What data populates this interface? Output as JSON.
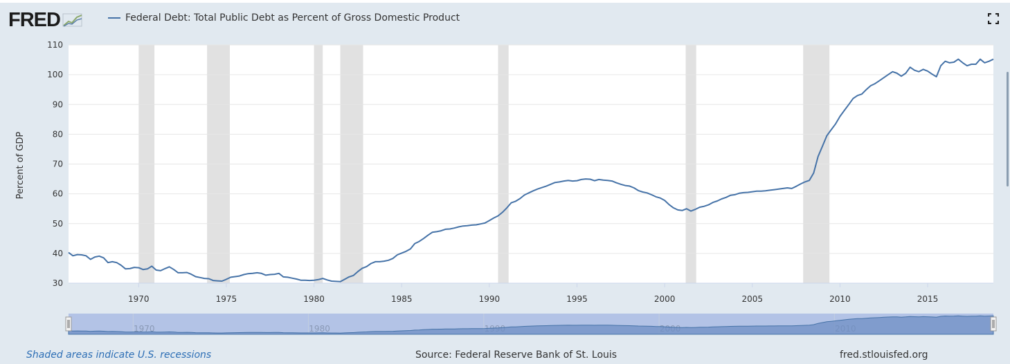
{
  "header": {
    "logo_text": "FRED",
    "logo_icon": "chart-line-icon",
    "legend_label": "Federal Debt: Total Public Debt as Percent of Gross Domestic Product",
    "fullscreen_icon": "fullscreen-icon"
  },
  "footer": {
    "recessions_note": "Shaded areas indicate U.S. recessions",
    "source": "Source: Federal Reserve Bank of St. Louis",
    "site": "fred.stlouisfed.org"
  },
  "colors": {
    "series": "#4572a7",
    "recession": "#e1e1e1",
    "background": "#e1e9f0",
    "navigator_mask": "#b3c3e6"
  },
  "chart_data": {
    "type": "line",
    "ylabel": "Percent of GDP",
    "xlim": [
      1966.0,
      2018.75
    ],
    "ylim": [
      30,
      110
    ],
    "yticks": [
      30,
      40,
      50,
      60,
      70,
      80,
      90,
      100,
      110
    ],
    "xticks": [
      1970,
      1975,
      1980,
      1985,
      1990,
      1995,
      2000,
      2005,
      2010,
      2015
    ],
    "navigator_ticks": [
      1970,
      1980,
      1990,
      2000,
      2010
    ],
    "grid": true,
    "recessions": [
      [
        1970.0,
        1970.9
      ],
      [
        1973.9,
        1975.2
      ],
      [
        1980.0,
        1980.5
      ],
      [
        1981.5,
        1982.8
      ],
      [
        1990.5,
        1991.1
      ],
      [
        2001.2,
        2001.8
      ],
      [
        2007.9,
        2009.4
      ]
    ],
    "series": [
      {
        "values": [
          [
            1966.0,
            40.3
          ],
          [
            1966.25,
            39.2
          ],
          [
            1966.5,
            39.6
          ],
          [
            1966.75,
            39.5
          ],
          [
            1967.0,
            39.2
          ],
          [
            1967.25,
            38.0
          ],
          [
            1967.5,
            38.8
          ],
          [
            1967.75,
            39.1
          ],
          [
            1968.0,
            38.5
          ],
          [
            1968.25,
            36.9
          ],
          [
            1968.5,
            37.2
          ],
          [
            1968.75,
            36.9
          ],
          [
            1969.0,
            36.0
          ],
          [
            1969.25,
            34.8
          ],
          [
            1969.5,
            34.9
          ],
          [
            1969.75,
            35.3
          ],
          [
            1970.0,
            35.2
          ],
          [
            1970.25,
            34.6
          ],
          [
            1970.5,
            34.8
          ],
          [
            1970.75,
            35.7
          ],
          [
            1971.0,
            34.4
          ],
          [
            1971.25,
            34.2
          ],
          [
            1971.5,
            34.9
          ],
          [
            1971.75,
            35.5
          ],
          [
            1972.0,
            34.6
          ],
          [
            1972.25,
            33.5
          ],
          [
            1972.5,
            33.5
          ],
          [
            1972.75,
            33.6
          ],
          [
            1973.0,
            33.0
          ],
          [
            1973.25,
            32.2
          ],
          [
            1973.5,
            31.9
          ],
          [
            1973.75,
            31.6
          ],
          [
            1974.0,
            31.5
          ],
          [
            1974.25,
            30.9
          ],
          [
            1974.5,
            30.8
          ],
          [
            1974.75,
            30.7
          ],
          [
            1975.0,
            31.3
          ],
          [
            1975.25,
            32.0
          ],
          [
            1975.5,
            32.2
          ],
          [
            1975.75,
            32.4
          ],
          [
            1976.0,
            32.9
          ],
          [
            1976.25,
            33.2
          ],
          [
            1976.5,
            33.3
          ],
          [
            1976.75,
            33.5
          ],
          [
            1977.0,
            33.3
          ],
          [
            1977.25,
            32.7
          ],
          [
            1977.5,
            32.9
          ],
          [
            1977.75,
            33.0
          ],
          [
            1978.0,
            33.3
          ],
          [
            1978.25,
            32.1
          ],
          [
            1978.5,
            32.0
          ],
          [
            1978.75,
            31.7
          ],
          [
            1979.0,
            31.4
          ],
          [
            1979.25,
            31.0
          ],
          [
            1979.5,
            31.0
          ],
          [
            1979.75,
            30.9
          ],
          [
            1980.0,
            31.0
          ],
          [
            1980.25,
            31.2
          ],
          [
            1980.5,
            31.6
          ],
          [
            1980.75,
            31.1
          ],
          [
            1981.0,
            30.7
          ],
          [
            1981.25,
            30.6
          ],
          [
            1981.5,
            30.5
          ],
          [
            1981.75,
            31.3
          ],
          [
            1982.0,
            32.1
          ],
          [
            1982.25,
            32.6
          ],
          [
            1982.5,
            33.9
          ],
          [
            1982.75,
            35.0
          ],
          [
            1983.0,
            35.6
          ],
          [
            1983.25,
            36.6
          ],
          [
            1983.5,
            37.2
          ],
          [
            1983.75,
            37.2
          ],
          [
            1984.0,
            37.4
          ],
          [
            1984.25,
            37.7
          ],
          [
            1984.5,
            38.3
          ],
          [
            1984.75,
            39.5
          ],
          [
            1985.0,
            40.1
          ],
          [
            1985.25,
            40.7
          ],
          [
            1985.5,
            41.5
          ],
          [
            1985.75,
            43.3
          ],
          [
            1986.0,
            44.0
          ],
          [
            1986.25,
            45.0
          ],
          [
            1986.5,
            46.1
          ],
          [
            1986.75,
            47.1
          ],
          [
            1987.0,
            47.3
          ],
          [
            1987.25,
            47.6
          ],
          [
            1987.5,
            48.1
          ],
          [
            1987.75,
            48.2
          ],
          [
            1988.0,
            48.5
          ],
          [
            1988.25,
            48.9
          ],
          [
            1988.5,
            49.2
          ],
          [
            1988.75,
            49.3
          ],
          [
            1989.0,
            49.5
          ],
          [
            1989.25,
            49.6
          ],
          [
            1989.5,
            49.9
          ],
          [
            1989.75,
            50.2
          ],
          [
            1990.0,
            51.0
          ],
          [
            1990.25,
            51.9
          ],
          [
            1990.5,
            52.6
          ],
          [
            1990.75,
            53.8
          ],
          [
            1991.0,
            55.3
          ],
          [
            1991.25,
            57.0
          ],
          [
            1991.5,
            57.5
          ],
          [
            1991.75,
            58.4
          ],
          [
            1992.0,
            59.6
          ],
          [
            1992.25,
            60.3
          ],
          [
            1992.5,
            61.0
          ],
          [
            1992.75,
            61.6
          ],
          [
            1993.0,
            62.1
          ],
          [
            1993.25,
            62.6
          ],
          [
            1993.5,
            63.2
          ],
          [
            1993.75,
            63.8
          ],
          [
            1994.0,
            64.0
          ],
          [
            1994.25,
            64.3
          ],
          [
            1994.5,
            64.5
          ],
          [
            1994.75,
            64.3
          ],
          [
            1995.0,
            64.4
          ],
          [
            1995.25,
            64.8
          ],
          [
            1995.5,
            65.0
          ],
          [
            1995.75,
            64.9
          ],
          [
            1996.0,
            64.4
          ],
          [
            1996.25,
            64.8
          ],
          [
            1996.5,
            64.6
          ],
          [
            1996.75,
            64.5
          ],
          [
            1997.0,
            64.3
          ],
          [
            1997.25,
            63.7
          ],
          [
            1997.5,
            63.2
          ],
          [
            1997.75,
            62.8
          ],
          [
            1998.0,
            62.6
          ],
          [
            1998.25,
            62.0
          ],
          [
            1998.5,
            61.1
          ],
          [
            1998.75,
            60.6
          ],
          [
            1999.0,
            60.3
          ],
          [
            1999.25,
            59.7
          ],
          [
            1999.5,
            59.0
          ],
          [
            1999.75,
            58.6
          ],
          [
            2000.0,
            57.8
          ],
          [
            2000.25,
            56.4
          ],
          [
            2000.5,
            55.3
          ],
          [
            2000.75,
            54.6
          ],
          [
            2001.0,
            54.4
          ],
          [
            2001.25,
            55.0
          ],
          [
            2001.5,
            54.2
          ],
          [
            2001.75,
            54.8
          ],
          [
            2002.0,
            55.5
          ],
          [
            2002.25,
            55.8
          ],
          [
            2002.5,
            56.3
          ],
          [
            2002.75,
            57.1
          ],
          [
            2003.0,
            57.6
          ],
          [
            2003.25,
            58.3
          ],
          [
            2003.5,
            58.8
          ],
          [
            2003.75,
            59.5
          ],
          [
            2004.0,
            59.7
          ],
          [
            2004.25,
            60.2
          ],
          [
            2004.5,
            60.4
          ],
          [
            2004.75,
            60.5
          ],
          [
            2005.0,
            60.7
          ],
          [
            2005.25,
            60.9
          ],
          [
            2005.5,
            60.9
          ],
          [
            2005.75,
            61.0
          ],
          [
            2006.0,
            61.2
          ],
          [
            2006.25,
            61.4
          ],
          [
            2006.5,
            61.6
          ],
          [
            2006.75,
            61.8
          ],
          [
            2007.0,
            62.0
          ],
          [
            2007.25,
            61.8
          ],
          [
            2007.5,
            62.5
          ],
          [
            2007.75,
            63.3
          ],
          [
            2008.0,
            64.0
          ],
          [
            2008.25,
            64.5
          ],
          [
            2008.5,
            67.0
          ],
          [
            2008.75,
            72.5
          ],
          [
            2009.0,
            76.0
          ],
          [
            2009.25,
            79.5
          ],
          [
            2009.5,
            81.5
          ],
          [
            2009.75,
            83.5
          ],
          [
            2010.0,
            86.0
          ],
          [
            2010.25,
            88.0
          ],
          [
            2010.5,
            90.0
          ],
          [
            2010.75,
            92.0
          ],
          [
            2011.0,
            93.0
          ],
          [
            2011.25,
            93.5
          ],
          [
            2011.5,
            95.0
          ],
          [
            2011.75,
            96.3
          ],
          [
            2012.0,
            97.0
          ],
          [
            2012.25,
            98.0
          ],
          [
            2012.5,
            99.0
          ],
          [
            2012.75,
            100.0
          ],
          [
            2013.0,
            101.0
          ],
          [
            2013.25,
            100.5
          ],
          [
            2013.5,
            99.5
          ],
          [
            2013.75,
            100.5
          ],
          [
            2014.0,
            102.5
          ],
          [
            2014.25,
            101.5
          ],
          [
            2014.5,
            101.0
          ],
          [
            2014.75,
            101.8
          ],
          [
            2015.0,
            101.2
          ],
          [
            2015.25,
            100.2
          ],
          [
            2015.5,
            99.3
          ],
          [
            2015.75,
            103.0
          ],
          [
            2016.0,
            104.5
          ],
          [
            2016.25,
            104.0
          ],
          [
            2016.5,
            104.2
          ],
          [
            2016.75,
            105.2
          ],
          [
            2017.0,
            104.0
          ],
          [
            2017.25,
            103.0
          ],
          [
            2017.5,
            103.5
          ],
          [
            2017.75,
            103.5
          ],
          [
            2018.0,
            105.2
          ],
          [
            2018.25,
            104.0
          ],
          [
            2018.5,
            104.5
          ],
          [
            2018.75,
            105.2
          ]
        ]
      }
    ]
  }
}
